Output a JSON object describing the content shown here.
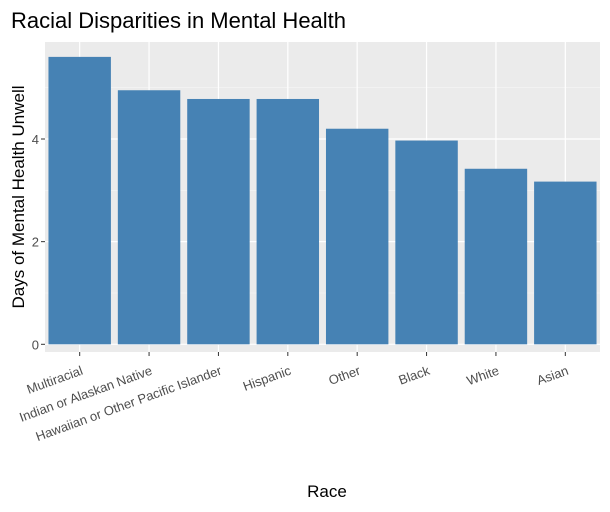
{
  "chart_data": {
    "type": "bar",
    "title": "Racial Disparities in Mental Health",
    "xlabel": "Race",
    "ylabel": "Days of Mental Health Unwell",
    "categories": [
      "Multiracial",
      "Indian or Alaskan Native",
      "Hawaiian or Other Pacific Islander",
      "Hispanic",
      "Other",
      "Black",
      "White",
      "Asian"
    ],
    "values": [
      5.6,
      4.95,
      4.78,
      4.78,
      4.2,
      3.97,
      3.42,
      3.17
    ],
    "ylim": [
      -0.15,
      5.89
    ],
    "yticks": [
      0,
      2,
      4
    ],
    "grid": true,
    "legend": "none",
    "colors": {
      "bar": "#4682b4",
      "panel": "#ebebeb",
      "grid_major": "#ffffff",
      "grid_minor": "#f5f5f5"
    }
  }
}
